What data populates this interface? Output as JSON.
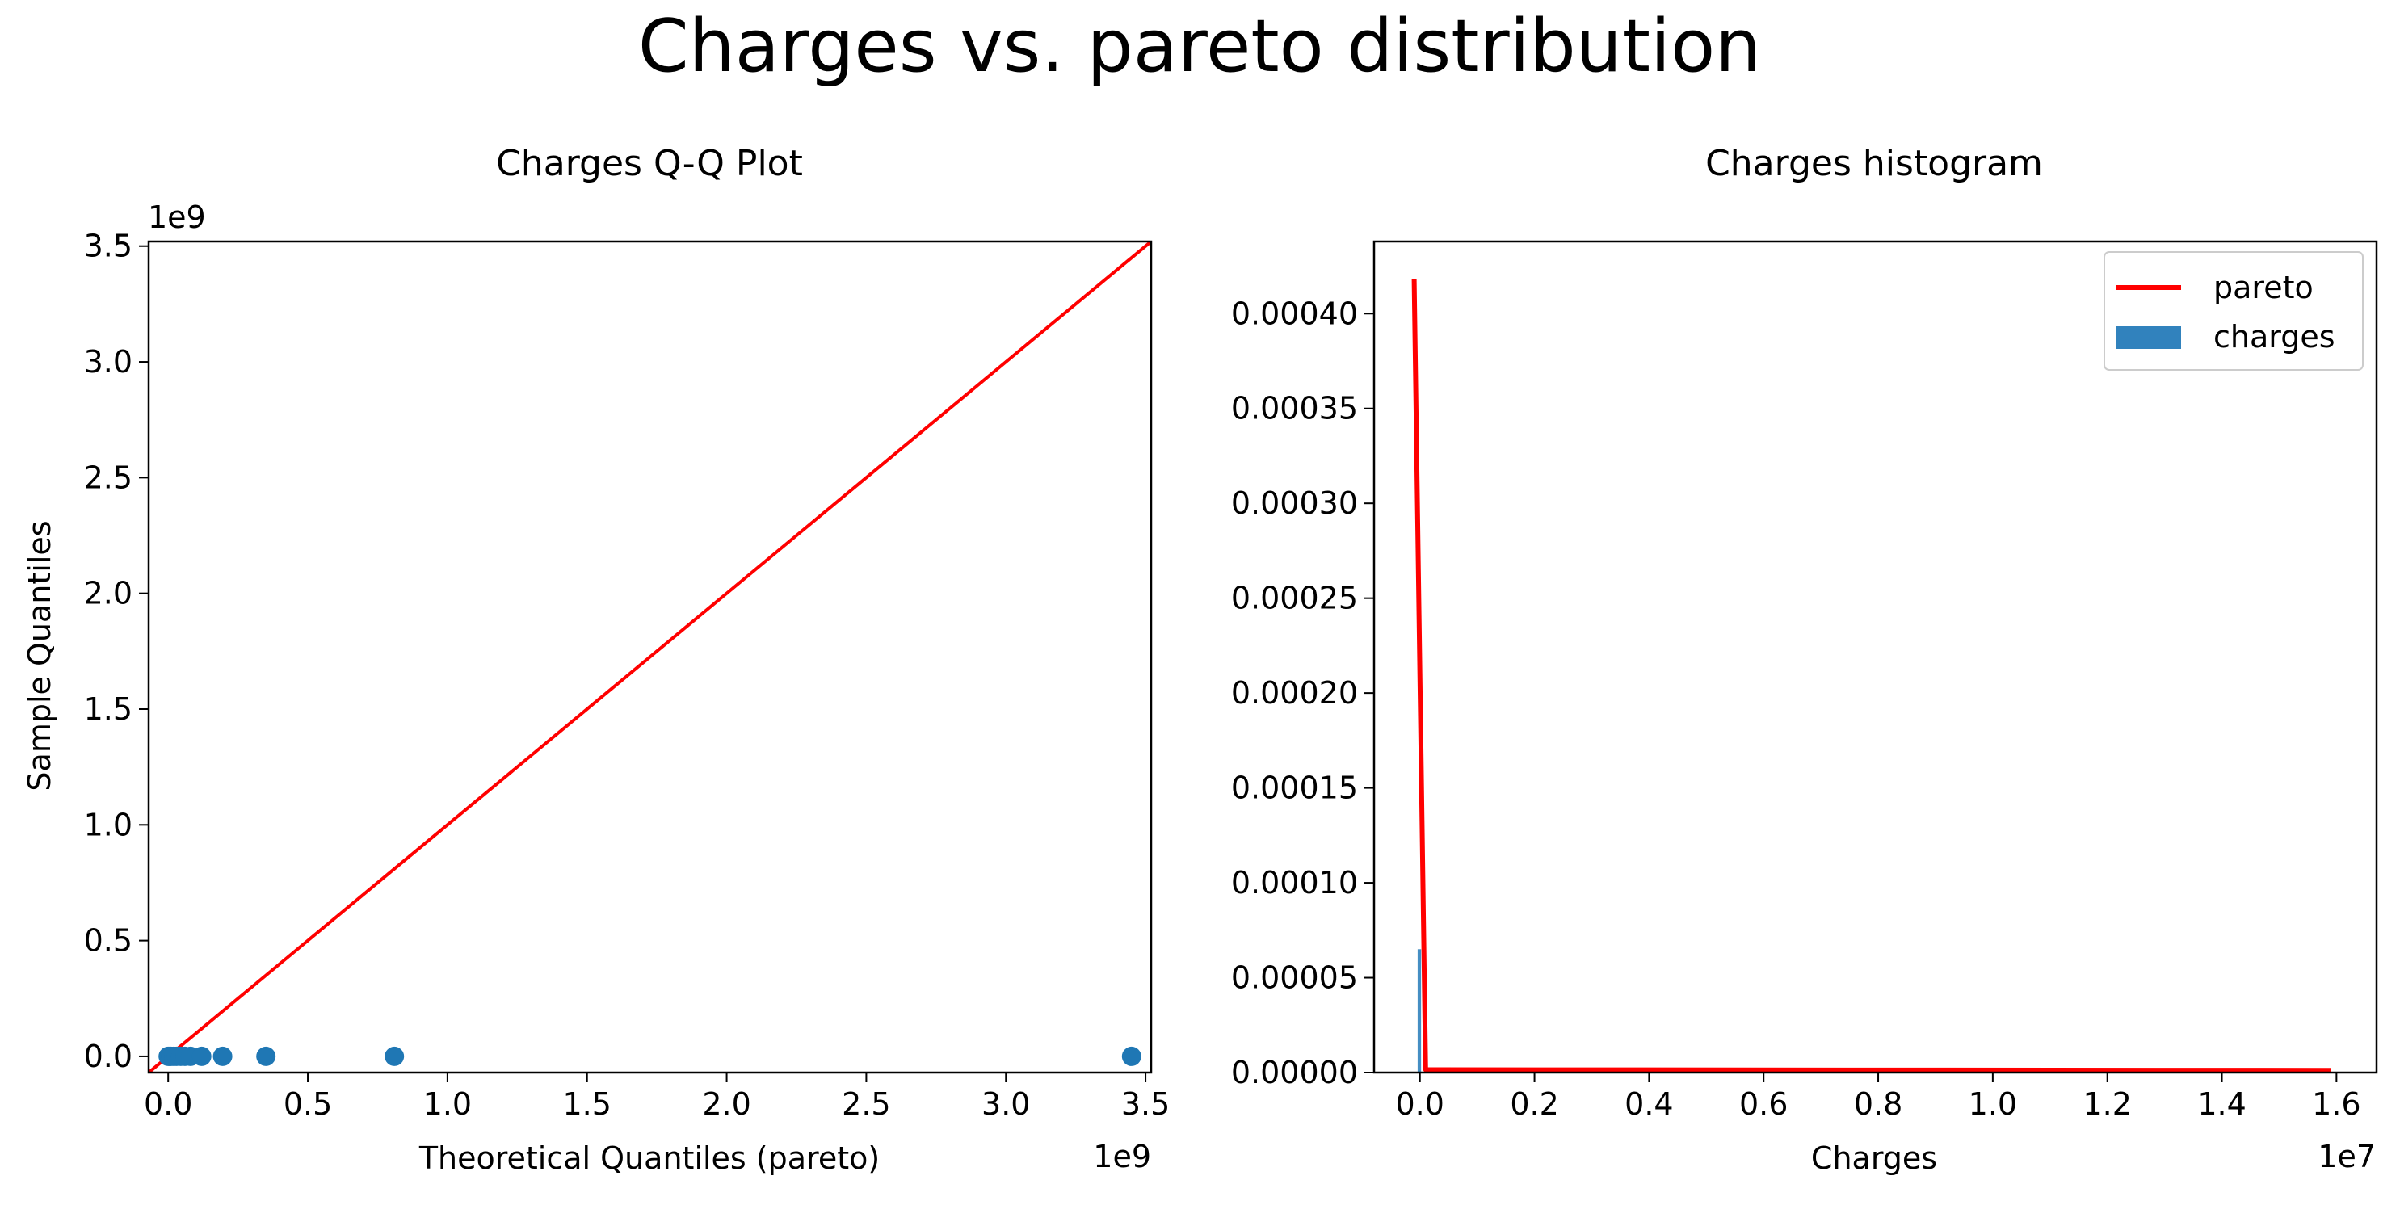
{
  "figure": {
    "suptitle": "Charges vs. pareto distribution"
  },
  "colors": {
    "scatter": "#1f77b4",
    "fit_line": "#ff0000",
    "histogram": "#3182bd",
    "pdf_line": "#ff0000"
  },
  "chart_data": [
    {
      "type": "scatter",
      "title": "Charges Q-Q Plot",
      "xlabel": "Theoretical Quantiles (pareto)",
      "ylabel": "Sample Quantiles",
      "x_offset_text": "1e9",
      "y_offset_text": "1e9",
      "scale_factor": 1000000000,
      "xlim": [
        -0.07,
        3.52
      ],
      "ylim": [
        -0.07,
        3.52
      ],
      "xticks": [
        0.0,
        0.5,
        1.0,
        1.5,
        2.0,
        2.5,
        3.0,
        3.5
      ],
      "xtick_labels": [
        "0.0",
        "0.5",
        "1.0",
        "1.5",
        "2.0",
        "2.5",
        "3.0",
        "3.5"
      ],
      "yticks": [
        0.0,
        0.5,
        1.0,
        1.5,
        2.0,
        2.5,
        3.0,
        3.5
      ],
      "ytick_labels": [
        "0.0",
        "0.5",
        "1.0",
        "1.5",
        "2.0",
        "2.5",
        "3.0",
        "3.5"
      ],
      "grid": false,
      "series": [
        {
          "type": "scatter",
          "x": [
            0.0,
            0.005,
            0.01,
            0.02,
            0.03,
            0.045,
            0.06,
            0.08,
            0.12,
            0.195,
            0.35,
            0.81,
            3.45
          ],
          "y": [
            0.0,
            0.0,
            0.0,
            0.0,
            0.0,
            0.0,
            0.0,
            0.0,
            0.0,
            0.0,
            0.0,
            0.0,
            0.0
          ]
        },
        {
          "type": "line",
          "x": [
            -0.07,
            3.52
          ],
          "y": [
            -0.07,
            3.52
          ]
        }
      ]
    },
    {
      "type": "bar",
      "title": "Charges histogram",
      "xlabel": "Charges",
      "ylabel": "",
      "x_offset_text": "1e7",
      "scale_factor": 10000000,
      "xlim": [
        -0.08,
        1.67
      ],
      "ylim": [
        0,
        0.000438
      ],
      "xticks": [
        0.0,
        0.2,
        0.4,
        0.6,
        0.8,
        1.0,
        1.2,
        1.4,
        1.6
      ],
      "xtick_labels": [
        "0.0",
        "0.2",
        "0.4",
        "0.6",
        "0.8",
        "1.0",
        "1.2",
        "1.4",
        "1.6"
      ],
      "yticks": [
        0,
        5e-05,
        0.0001,
        0.00015,
        0.0002,
        0.00025,
        0.0003,
        0.00035,
        0.0004
      ],
      "ytick_labels": [
        "0.00000",
        "0.00005",
        "0.00010",
        "0.00015",
        "0.00020",
        "0.00025",
        "0.00030",
        "0.00035",
        "0.00040"
      ],
      "grid": false,
      "legend": {
        "position": "top-right",
        "entries": [
          {
            "label": "pareto",
            "kind": "line"
          },
          {
            "label": "charges",
            "kind": "patch"
          }
        ]
      },
      "histogram": {
        "bin_starts": [
          -0.004
        ],
        "bin_width": 0.006,
        "heights": [
          6.5e-05
        ]
      },
      "pdf": {
        "x": [
          -0.01,
          0.01,
          1.59
        ],
        "y": [
          0.000418,
          1.5e-06,
          1.2e-06
        ]
      }
    }
  ]
}
